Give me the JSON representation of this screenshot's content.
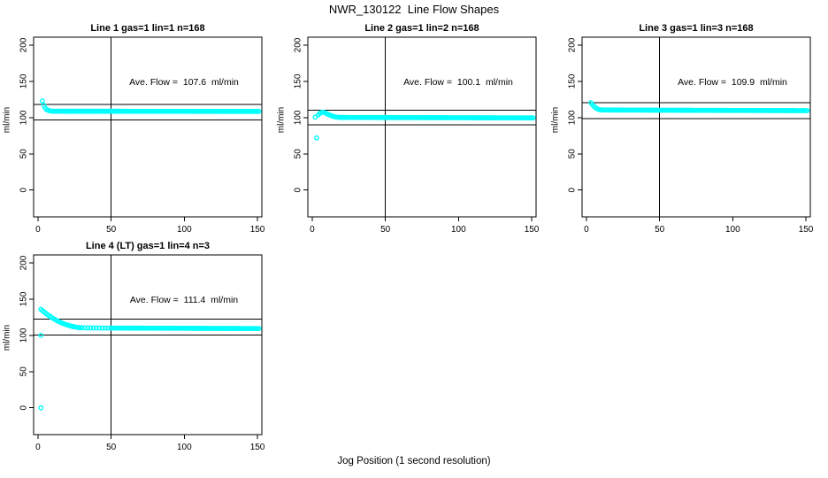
{
  "title": "NWR_130122  Line Flow Shapes",
  "xlabel": "Jog Position (1 second resolution)",
  "colors": {
    "points": "#00ffff",
    "axis": "#000000",
    "background": "#ffffff"
  },
  "chart_data": [
    {
      "type": "scatter",
      "title": "Line 1 gas=1 lin=1 n=168",
      "annotation": "Ave. Flow =  107.6  ml/min",
      "ave_flow_ml_min": 107.6,
      "line": 1,
      "gas": 1,
      "lin": 1,
      "n": 168,
      "ylabel": "ml/min",
      "xlim": [
        -3,
        153
      ],
      "ylim": [
        -37,
        211
      ],
      "x_ticks": [
        0,
        50,
        100,
        150
      ],
      "y_ticks": [
        0,
        50,
        100,
        150,
        200
      ],
      "hlines": [
        118.4,
        96.8
      ],
      "vlines": [
        50
      ],
      "outliers": [],
      "head_points": [
        [
          3,
          123
        ],
        [
          4,
          117
        ],
        [
          5,
          113
        ],
        [
          6,
          111
        ],
        [
          7,
          110
        ],
        [
          8,
          109.4
        ],
        [
          9,
          109
        ],
        [
          10,
          108.9
        ],
        [
          11,
          108.8
        ]
      ],
      "tail": {
        "x_from": 12,
        "x_to": 151,
        "x_step": 1,
        "v_from": 108.8,
        "v_to": 108.6
      }
    },
    {
      "type": "scatter",
      "title": "Line 2 gas=1 lin=2 n=168",
      "annotation": "Ave. Flow =  100.1  ml/min",
      "ave_flow_ml_min": 100.1,
      "line": 2,
      "gas": 1,
      "lin": 2,
      "n": 168,
      "ylabel": "ml/min",
      "xlim": [
        -3,
        153
      ],
      "ylim": [
        -37,
        211
      ],
      "x_ticks": [
        0,
        50,
        100,
        150
      ],
      "y_ticks": [
        0,
        50,
        100,
        150,
        200
      ],
      "hlines": [
        110.1,
        90.1
      ],
      "vlines": [
        50
      ],
      "outliers": [
        [
          3,
          72
        ]
      ],
      "head_points": [
        [
          2,
          100.5
        ],
        [
          4,
          103.5
        ],
        [
          5,
          105.5
        ],
        [
          6,
          106.8
        ],
        [
          7,
          107.5
        ],
        [
          8,
          107.2
        ],
        [
          9,
          106.4
        ],
        [
          10,
          105.4
        ],
        [
          11,
          104.4
        ],
        [
          12,
          103.5
        ],
        [
          13,
          102.7
        ],
        [
          14,
          102
        ],
        [
          15,
          101.4
        ],
        [
          16,
          100.9
        ],
        [
          17,
          100.6
        ],
        [
          18,
          100.4
        ],
        [
          19,
          100.3
        ]
      ],
      "tail": {
        "x_from": 20,
        "x_to": 151,
        "x_step": 1,
        "v_from": 100.2,
        "v_to": 99.6
      }
    },
    {
      "type": "scatter",
      "title": "Line 3 gas=1 lin=3 n=168",
      "annotation": "Ave. Flow =  109.9  ml/min",
      "ave_flow_ml_min": 109.9,
      "line": 3,
      "gas": 1,
      "lin": 3,
      "n": 168,
      "ylabel": "ml/min",
      "xlim": [
        -3,
        153
      ],
      "ylim": [
        -37,
        211
      ],
      "x_ticks": [
        0,
        50,
        100,
        150
      ],
      "y_ticks": [
        0,
        50,
        100,
        150,
        200
      ],
      "hlines": [
        120.9,
        98.9
      ],
      "vlines": [
        50
      ],
      "outliers": [],
      "head_points": [
        [
          3,
          120.5
        ],
        [
          4,
          118
        ],
        [
          5,
          115.8
        ],
        [
          6,
          114
        ],
        [
          7,
          112.6
        ],
        [
          8,
          111.6
        ],
        [
          9,
          111
        ],
        [
          10,
          110.7
        ]
      ],
      "tail": {
        "x_from": 11,
        "x_to": 151,
        "x_step": 1,
        "v_from": 110.5,
        "v_to": 109.6
      }
    },
    {
      "type": "scatter",
      "title": "Line 4 (LT) gas=1 lin=4 n=3",
      "annotation": "Ave. Flow =  111.4  ml/min",
      "ave_flow_ml_min": 111.4,
      "line": 4,
      "gas": 1,
      "lin": 4,
      "n": 3,
      "ylabel": "ml/min",
      "xlim": [
        -3,
        153
      ],
      "ylim": [
        -37,
        211
      ],
      "x_ticks": [
        0,
        50,
        100,
        150
      ],
      "y_ticks": [
        0,
        50,
        100,
        150,
        200
      ],
      "hlines": [
        122.5,
        100.3
      ],
      "vlines": [
        50
      ],
      "outliers": [
        [
          2,
          100
        ],
        [
          2,
          0
        ]
      ],
      "head_points": [
        [
          2,
          136
        ],
        [
          3,
          134.3
        ],
        [
          4,
          132.6
        ],
        [
          5,
          131
        ],
        [
          6,
          129.4
        ],
        [
          7,
          127.9
        ],
        [
          8,
          126.5
        ],
        [
          9,
          125.1
        ],
        [
          10,
          123.8
        ],
        [
          11,
          122.6
        ],
        [
          12,
          121.4
        ],
        [
          13,
          120.3
        ],
        [
          14,
          119.3
        ],
        [
          15,
          118.3
        ],
        [
          16,
          117.4
        ],
        [
          17,
          116.5
        ],
        [
          18,
          115.7
        ],
        [
          19,
          115
        ],
        [
          20,
          114.3
        ],
        [
          21,
          113.7
        ],
        [
          22,
          113.1
        ],
        [
          23,
          112.6
        ],
        [
          24,
          112.1
        ],
        [
          25,
          111.7
        ],
        [
          26,
          111.3
        ],
        [
          27,
          111
        ],
        [
          28,
          110.7
        ],
        [
          29,
          110.6
        ],
        [
          30,
          110.5
        ],
        [
          32,
          110.4
        ],
        [
          34,
          110.3
        ],
        [
          36,
          110.3
        ],
        [
          38,
          110.2
        ],
        [
          40,
          110.2
        ],
        [
          42,
          110.2
        ],
        [
          44,
          110.1
        ],
        [
          46,
          110.1
        ],
        [
          48,
          110.1
        ],
        [
          50,
          110.1
        ]
      ],
      "tail": {
        "x_from": 51,
        "x_to": 151,
        "x_step": 1,
        "v_from": 110.1,
        "v_to": 109.4
      }
    }
  ]
}
